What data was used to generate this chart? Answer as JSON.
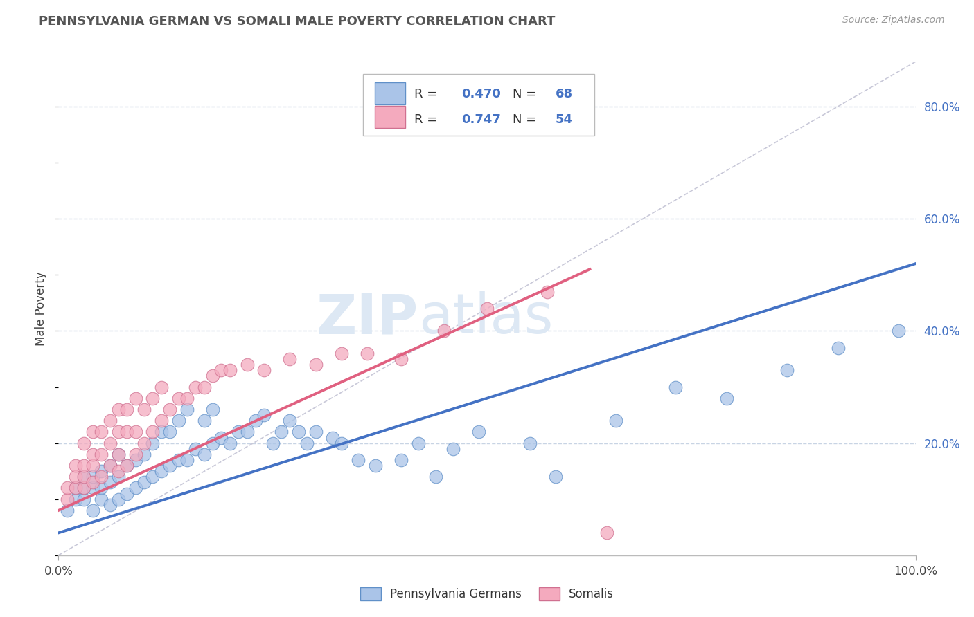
{
  "title": "PENNSYLVANIA GERMAN VS SOMALI MALE POVERTY CORRELATION CHART",
  "source_text": "Source: ZipAtlas.com",
  "ylabel": "Male Poverty",
  "legend_label1": "Pennsylvania Germans",
  "legend_label2": "Somalis",
  "R1": "0.470",
  "N1": "68",
  "R2": "0.747",
  "N2": "54",
  "color1": "#aac4e8",
  "color2": "#f4aabe",
  "line_color1": "#4472c4",
  "line_color2": "#e06080",
  "bg_color": "#ffffff",
  "grid_color": "#c8d4e4",
  "ref_line_color": "#c8c8d8",
  "xlim": [
    0,
    1.0
  ],
  "ylim": [
    0,
    0.88
  ],
  "ytick_vals": [
    0.2,
    0.4,
    0.6,
    0.8
  ],
  "ytick_labels": [
    "20.0%",
    "40.0%",
    "60.0%",
    "80.0%"
  ],
  "xtick_vals": [
    0.0,
    0.2,
    0.4,
    0.5,
    0.6,
    0.8,
    1.0
  ],
  "xtick_labels": [
    "0.0%",
    "",
    "",
    "",
    "",
    "",
    "100.0%"
  ],
  "blue_x": [
    0.01,
    0.02,
    0.02,
    0.03,
    0.03,
    0.03,
    0.04,
    0.04,
    0.04,
    0.05,
    0.05,
    0.05,
    0.06,
    0.06,
    0.06,
    0.07,
    0.07,
    0.07,
    0.08,
    0.08,
    0.09,
    0.09,
    0.1,
    0.1,
    0.11,
    0.11,
    0.12,
    0.12,
    0.13,
    0.13,
    0.14,
    0.14,
    0.15,
    0.15,
    0.16,
    0.17,
    0.17,
    0.18,
    0.18,
    0.19,
    0.2,
    0.21,
    0.22,
    0.23,
    0.24,
    0.25,
    0.26,
    0.27,
    0.28,
    0.29,
    0.3,
    0.32,
    0.33,
    0.35,
    0.37,
    0.4,
    0.42,
    0.44,
    0.46,
    0.49,
    0.55,
    0.58,
    0.65,
    0.72,
    0.78,
    0.85,
    0.91,
    0.98
  ],
  "blue_y": [
    0.08,
    0.1,
    0.12,
    0.1,
    0.12,
    0.14,
    0.08,
    0.12,
    0.14,
    0.1,
    0.12,
    0.15,
    0.09,
    0.13,
    0.16,
    0.1,
    0.14,
    0.18,
    0.11,
    0.16,
    0.12,
    0.17,
    0.13,
    0.18,
    0.14,
    0.2,
    0.15,
    0.22,
    0.16,
    0.22,
    0.17,
    0.24,
    0.17,
    0.26,
    0.19,
    0.18,
    0.24,
    0.2,
    0.26,
    0.21,
    0.2,
    0.22,
    0.22,
    0.24,
    0.25,
    0.2,
    0.22,
    0.24,
    0.22,
    0.2,
    0.22,
    0.21,
    0.2,
    0.17,
    0.16,
    0.17,
    0.2,
    0.14,
    0.19,
    0.22,
    0.2,
    0.14,
    0.24,
    0.3,
    0.28,
    0.33,
    0.37,
    0.4
  ],
  "pink_x": [
    0.01,
    0.01,
    0.02,
    0.02,
    0.02,
    0.03,
    0.03,
    0.03,
    0.03,
    0.04,
    0.04,
    0.04,
    0.04,
    0.05,
    0.05,
    0.05,
    0.06,
    0.06,
    0.06,
    0.07,
    0.07,
    0.07,
    0.07,
    0.08,
    0.08,
    0.08,
    0.09,
    0.09,
    0.09,
    0.1,
    0.1,
    0.11,
    0.11,
    0.12,
    0.12,
    0.13,
    0.14,
    0.15,
    0.16,
    0.17,
    0.18,
    0.19,
    0.2,
    0.22,
    0.24,
    0.27,
    0.3,
    0.33,
    0.36,
    0.4,
    0.45,
    0.5,
    0.57,
    0.64
  ],
  "pink_y": [
    0.1,
    0.12,
    0.12,
    0.14,
    0.16,
    0.12,
    0.14,
    0.16,
    0.2,
    0.13,
    0.16,
    0.18,
    0.22,
    0.14,
    0.18,
    0.22,
    0.16,
    0.2,
    0.24,
    0.15,
    0.18,
    0.22,
    0.26,
    0.16,
    0.22,
    0.26,
    0.18,
    0.22,
    0.28,
    0.2,
    0.26,
    0.22,
    0.28,
    0.24,
    0.3,
    0.26,
    0.28,
    0.28,
    0.3,
    0.3,
    0.32,
    0.33,
    0.33,
    0.34,
    0.33,
    0.35,
    0.34,
    0.36,
    0.36,
    0.35,
    0.4,
    0.44,
    0.47,
    0.04
  ],
  "blue_line_x": [
    0.0,
    1.0
  ],
  "blue_line_y": [
    0.04,
    0.52
  ],
  "pink_line_x": [
    0.0,
    0.62
  ],
  "pink_line_y": [
    0.08,
    0.51
  ]
}
